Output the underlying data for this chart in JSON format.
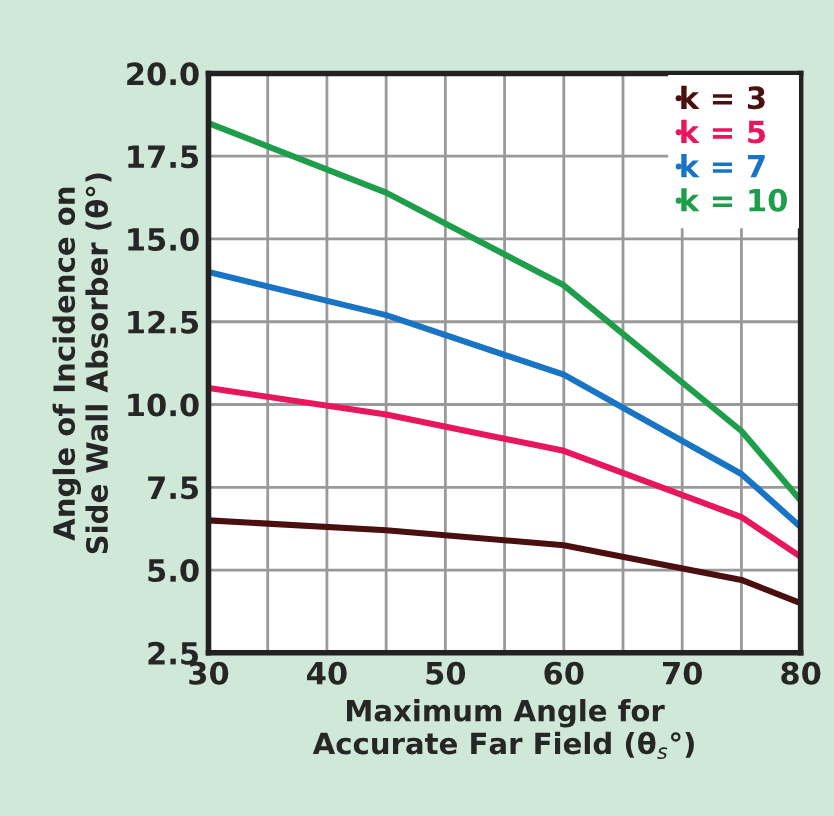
{
  "chart_data": {
    "type": "line",
    "xlabel": "Maximum Angle for\nAccurate Far Field (θ$_{s}$°)",
    "ylabel": "Angle of Incidence on\nSide Wall Absorber (θ°)",
    "x": [
      30,
      45,
      60,
      75,
      80
    ],
    "series": [
      {
        "name": "k = 3",
        "color": "#4a1010",
        "values": [
          6.5,
          6.2,
          5.75,
          4.7,
          4.0
        ]
      },
      {
        "name": "k = 5",
        "color": "#e8175d",
        "values": [
          10.5,
          9.7,
          8.6,
          6.6,
          5.4
        ]
      },
      {
        "name": "k = 7",
        "color": "#1874c4",
        "values": [
          14.0,
          12.7,
          10.9,
          7.9,
          6.3
        ]
      },
      {
        "name": "k = 10",
        "color": "#1e9e4a",
        "values": [
          18.5,
          16.4,
          13.6,
          9.2,
          7.1
        ]
      }
    ],
    "xlim": [
      30,
      80
    ],
    "xticks": [
      30,
      40,
      50,
      60,
      70,
      80
    ],
    "ylim": [
      2.5,
      20
    ],
    "yticks": [
      {
        "value": 2.5,
        "label": "2.5"
      },
      {
        "value": 5,
        "label": "5.0"
      },
      {
        "value": 7.5,
        "label": "7.5"
      },
      {
        "value": 10,
        "label": "10.0"
      },
      {
        "value": 12.5,
        "label": "12.5"
      },
      {
        "value": 15,
        "label": "15.0"
      },
      {
        "value": 17.5,
        "label": "17.5"
      },
      {
        "value": 20,
        "label": "20.0"
      }
    ],
    "grid": true,
    "legend": "top right",
    "marker": "none",
    "line_style": "solid"
  }
}
